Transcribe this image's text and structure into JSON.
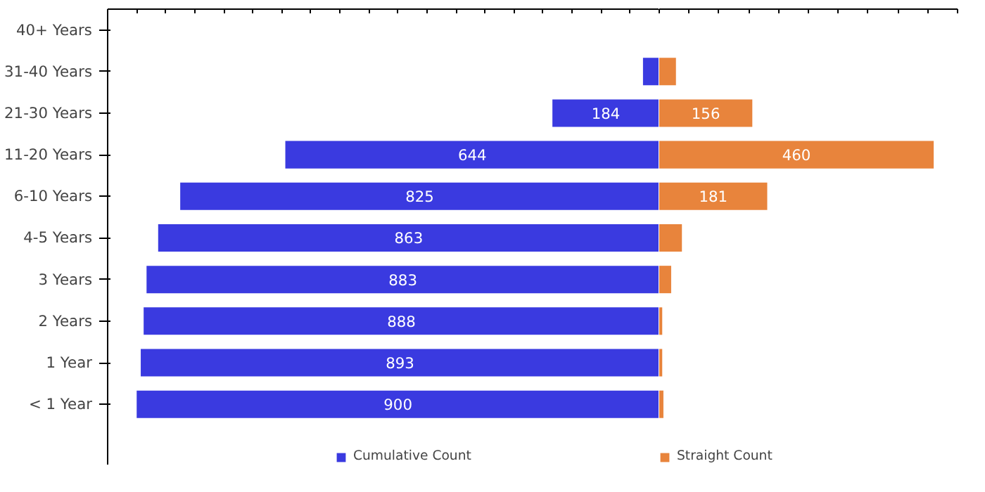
{
  "chart_data": [
    {
      "type": "bar",
      "orientation": "horizontal",
      "categories": [
        "40+ Years",
        "31-40 Years",
        "21-30 Years",
        "11-20 Years",
        "6-10 Years",
        "4-5 Years",
        "3 Years",
        "2 Years",
        "1 Year",
        "< 1 Year"
      ],
      "series": [
        {
          "name": "Cumulative Count",
          "color": "#3a3ae0",
          "values": [
            0,
            28,
            184,
            644,
            825,
            863,
            883,
            888,
            893,
            900
          ],
          "value_labels": [
            null,
            null,
            "184",
            "644",
            "825",
            "863",
            "883",
            "888",
            "893",
            "900"
          ]
        }
      ],
      "xlim": [
        950,
        0
      ],
      "xticks": [
        {
          "value": 950,
          "label": null
        },
        {
          "value": 900,
          "label": null
        },
        {
          "value": 850,
          "label": null
        },
        {
          "value": 800,
          "label": null
        },
        {
          "value": 750,
          "label": null
        },
        {
          "value": 700,
          "label": null
        },
        {
          "value": 650,
          "label": null
        },
        {
          "value": 600,
          "label": null
        },
        {
          "value": 550,
          "label": null
        },
        {
          "value": 500,
          "label": null
        },
        {
          "value": 450,
          "label": null
        },
        {
          "value": 400,
          "label": null
        },
        {
          "value": 350,
          "label": null
        },
        {
          "value": 300,
          "label": null
        },
        {
          "value": 250,
          "label": null
        },
        {
          "value": 200,
          "label": null
        },
        {
          "value": 150,
          "label": null
        },
        {
          "value": 100,
          "label": null
        },
        {
          "value": 50,
          "label": null
        },
        {
          "value": 0,
          "label": null
        }
      ],
      "tick_labels": "y",
      "legend": "bottom right"
    },
    {
      "type": "bar",
      "orientation": "horizontal",
      "series": [
        {
          "name": "Straight Count",
          "color": "#e8843c",
          "values": [
            0,
            28,
            156,
            460,
            181,
            38,
            20,
            5,
            5,
            7
          ],
          "value_labels": [
            null,
            null,
            "156",
            "460",
            "181",
            null,
            null,
            null,
            null,
            null
          ]
        }
      ],
      "xlim": [
        0,
        500
      ],
      "xticks": [
        {
          "value": 0,
          "label": null
        },
        {
          "value": 50,
          "label": null
        },
        {
          "value": 100,
          "label": null
        },
        {
          "value": 150,
          "label": null
        },
        {
          "value": 200,
          "label": null
        },
        {
          "value": 250,
          "label": null
        },
        {
          "value": 300,
          "label": null
        },
        {
          "value": 350,
          "label": null
        },
        {
          "value": 400,
          "label": null
        },
        {
          "value": 450,
          "label": null
        },
        {
          "value": 500,
          "label": null
        }
      ],
      "tick_labels": false,
      "legend": "bottom left"
    }
  ]
}
